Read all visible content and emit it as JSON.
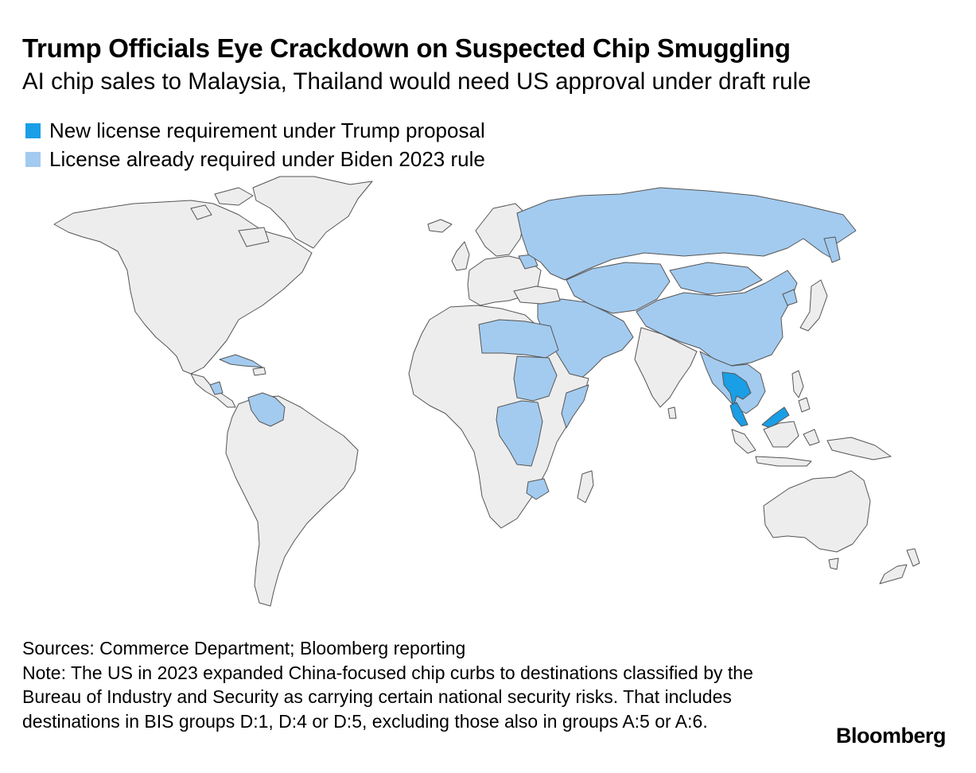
{
  "header": {
    "title": "Trump Officials Eye Crackdown on Suspected Chip Smuggling",
    "subtitle": "AI chip sales to Malaysia, Thailand would need US approval under draft rule"
  },
  "legend": [
    {
      "label": "New license requirement under Trump proposal",
      "color": "#1a9ee6"
    },
    {
      "label": "License already required under Biden 2023 rule",
      "color": "#a3cbef"
    }
  ],
  "map": {
    "base_color": "#ededed",
    "border_color": "#555555",
    "new_requirement_countries": [
      "Malaysia",
      "Thailand"
    ],
    "existing_requirement_countries": [
      "Russia",
      "China",
      "Kazakhstan",
      "Iran",
      "Iraq",
      "Saudi Arabia",
      "Egypt",
      "Libya",
      "Sudan",
      "Democratic Republic of the Congo",
      "Venezuela",
      "Cuba",
      "Vietnam",
      "Cambodia",
      "Laos",
      "Myanmar",
      "Mongolia",
      "Afghanistan",
      "Pakistan",
      "Somalia",
      "Zimbabwe",
      "Belarus",
      "Syria",
      "Yemen",
      "North Korea",
      "Central African Republic",
      "Nicaragua"
    ]
  },
  "footer": {
    "sources": "Sources: Commerce Department; Bloomberg reporting",
    "note": "Note: The US in 2023 expanded China-focused chip curbs to destinations classified by the Bureau of Industry and Security as carrying certain national security risks. That includes destinations in BIS groups D:1, D:4 or D:5, excluding those also in groups A:5 or A:6."
  },
  "brand": "Bloomberg"
}
